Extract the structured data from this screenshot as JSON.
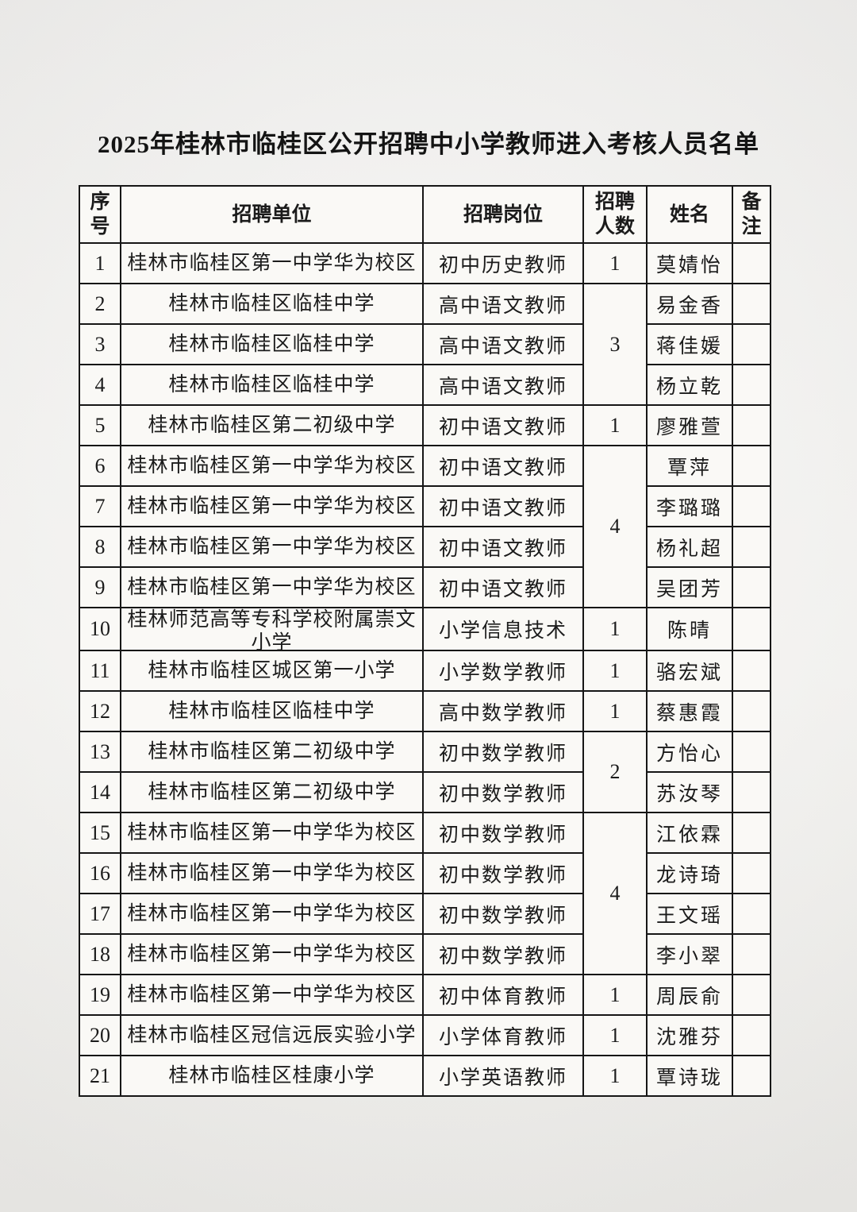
{
  "page": {
    "title": "2025年桂林市临桂区公开招聘中小学教师进入考核人员名单"
  },
  "table": {
    "headers": [
      "序号",
      "招聘单位",
      "招聘岗位",
      "招聘人数",
      "姓名",
      "备注"
    ],
    "rows": [
      {
        "no": "1",
        "unit": "桂林市临桂区第一中学华为校区",
        "position": "初中历史教师",
        "count": "1",
        "count_span": 1,
        "name": "莫婧怡",
        "remark": ""
      },
      {
        "no": "2",
        "unit": "桂林市临桂区临桂中学",
        "position": "高中语文教师",
        "count": "3",
        "count_span": 3,
        "name": "易金香",
        "remark": ""
      },
      {
        "no": "3",
        "unit": "桂林市临桂区临桂中学",
        "position": "高中语文教师",
        "count": "",
        "count_span": 0,
        "name": "蒋佳媛",
        "remark": ""
      },
      {
        "no": "4",
        "unit": "桂林市临桂区临桂中学",
        "position": "高中语文教师",
        "count": "",
        "count_span": 0,
        "name": "杨立乾",
        "remark": ""
      },
      {
        "no": "5",
        "unit": "桂林市临桂区第二初级中学",
        "position": "初中语文教师",
        "count": "1",
        "count_span": 1,
        "name": "廖雅萱",
        "remark": ""
      },
      {
        "no": "6",
        "unit": "桂林市临桂区第一中学华为校区",
        "position": "初中语文教师",
        "count": "4",
        "count_span": 4,
        "name": "覃萍",
        "remark": ""
      },
      {
        "no": "7",
        "unit": "桂林市临桂区第一中学华为校区",
        "position": "初中语文教师",
        "count": "",
        "count_span": 0,
        "name": "李璐璐",
        "remark": ""
      },
      {
        "no": "8",
        "unit": "桂林市临桂区第一中学华为校区",
        "position": "初中语文教师",
        "count": "",
        "count_span": 0,
        "name": "杨礼超",
        "remark": ""
      },
      {
        "no": "9",
        "unit": "桂林市临桂区第一中学华为校区",
        "position": "初中语文教师",
        "count": "",
        "count_span": 0,
        "name": "吴团芳",
        "remark": ""
      },
      {
        "no": "10",
        "unit": "桂林师范高等专科学校附属崇文小学",
        "position": "小学信息技术",
        "count": "1",
        "count_span": 1,
        "name": "陈晴",
        "remark": ""
      },
      {
        "no": "11",
        "unit": "桂林市临桂区城区第一小学",
        "position": "小学数学教师",
        "count": "1",
        "count_span": 1,
        "name": "骆宏斌",
        "remark": ""
      },
      {
        "no": "12",
        "unit": "桂林市临桂区临桂中学",
        "position": "高中数学教师",
        "count": "1",
        "count_span": 1,
        "name": "蔡惠霞",
        "remark": ""
      },
      {
        "no": "13",
        "unit": "桂林市临桂区第二初级中学",
        "position": "初中数学教师",
        "count": "2",
        "count_span": 2,
        "name": "方怡心",
        "remark": ""
      },
      {
        "no": "14",
        "unit": "桂林市临桂区第二初级中学",
        "position": "初中数学教师",
        "count": "",
        "count_span": 0,
        "name": "苏汝琴",
        "remark": ""
      },
      {
        "no": "15",
        "unit": "桂林市临桂区第一中学华为校区",
        "position": "初中数学教师",
        "count": "4",
        "count_span": 4,
        "name": "江依霖",
        "remark": ""
      },
      {
        "no": "16",
        "unit": "桂林市临桂区第一中学华为校区",
        "position": "初中数学教师",
        "count": "",
        "count_span": 0,
        "name": "龙诗琦",
        "remark": ""
      },
      {
        "no": "17",
        "unit": "桂林市临桂区第一中学华为校区",
        "position": "初中数学教师",
        "count": "",
        "count_span": 0,
        "name": "王文瑶",
        "remark": ""
      },
      {
        "no": "18",
        "unit": "桂林市临桂区第一中学华为校区",
        "position": "初中数学教师",
        "count": "",
        "count_span": 0,
        "name": "李小翠",
        "remark": ""
      },
      {
        "no": "19",
        "unit": "桂林市临桂区第一中学华为校区",
        "position": "初中体育教师",
        "count": "1",
        "count_span": 1,
        "name": "周辰俞",
        "remark": ""
      },
      {
        "no": "20",
        "unit": "桂林市临桂区冠信远辰实验小学",
        "position": "小学体育教师",
        "count": "1",
        "count_span": 1,
        "name": "沈雅芬",
        "remark": ""
      },
      {
        "no": "21",
        "unit": "桂林市临桂区桂康小学",
        "position": "小学英语教师",
        "count": "1",
        "count_span": 1,
        "name": "覃诗珑",
        "remark": ""
      }
    ]
  }
}
